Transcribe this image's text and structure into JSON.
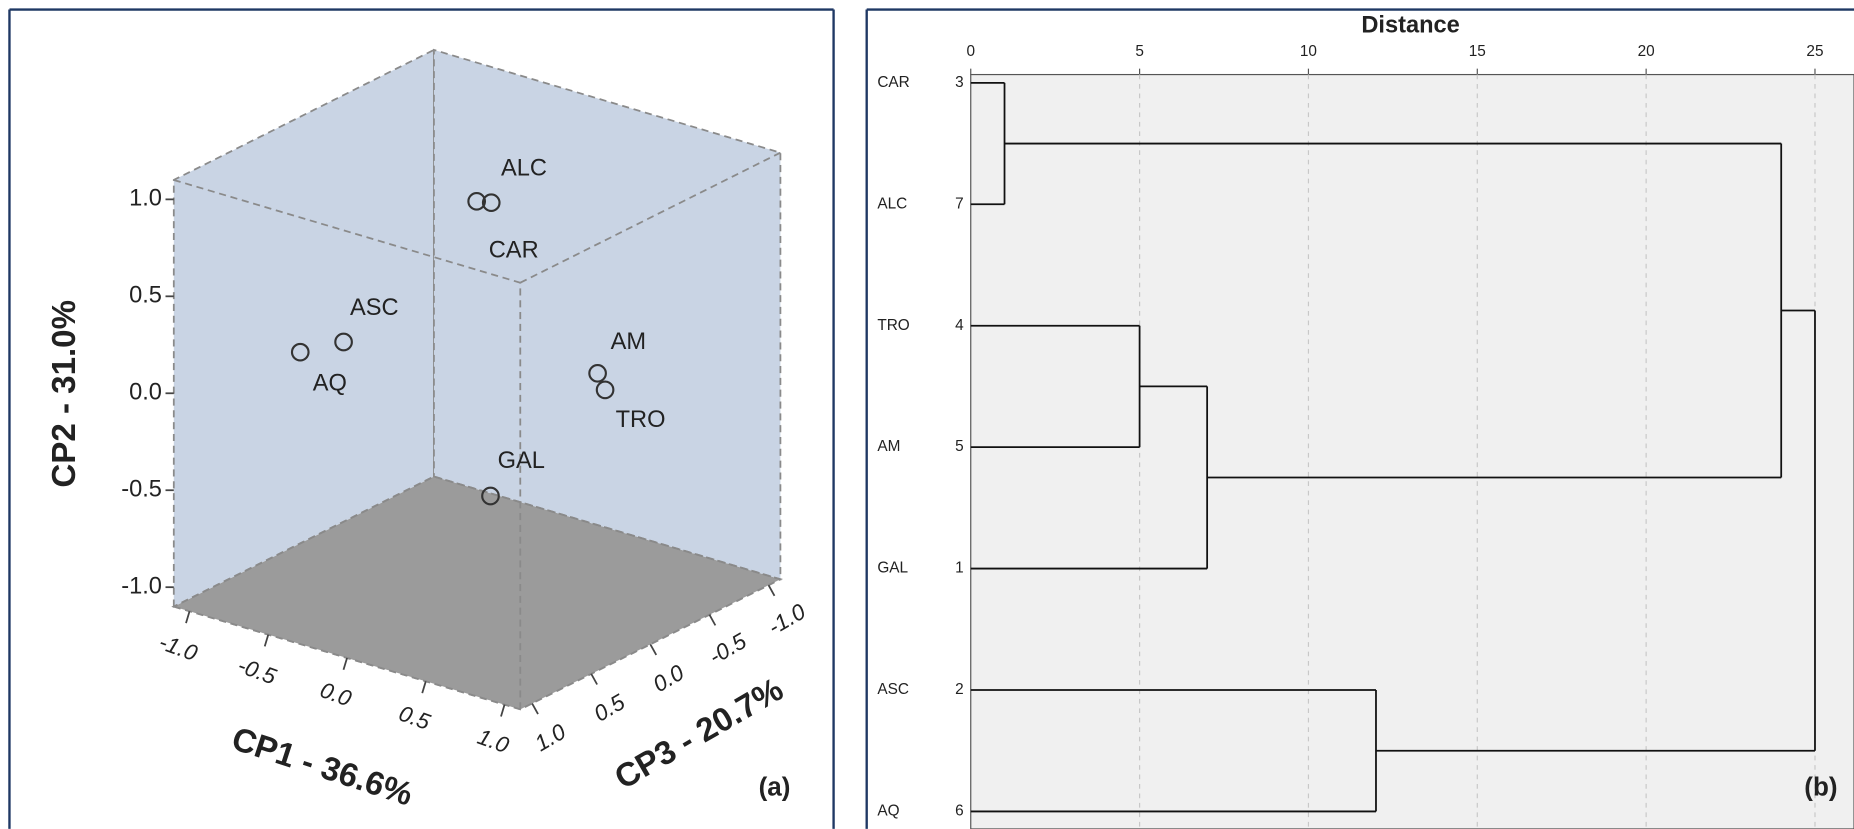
{
  "chart_data": [
    {
      "type": "scatter3d",
      "x_label": "CP1 - 36.6%",
      "y_label": "CP2 - 31.0%",
      "z_label": "CP3 - 20.7%",
      "panel_label": "(a)",
      "labels": [
        "ALC",
        "CAR",
        "ASC",
        "AQ",
        "AM",
        "TRO",
        "GAL"
      ],
      "x": [
        0.2,
        0.3,
        -0.6,
        -0.8,
        0.6,
        0.7,
        0.1
      ],
      "y": [
        1.05,
        1.07,
        0.15,
        0.08,
        0.11,
        0.07,
        -0.57
      ],
      "z": [
        0.27,
        0.28,
        0.33,
        0.43,
        -0.22,
        -0.15,
        0.02
      ],
      "xlim": [
        -1.1,
        1.1
      ],
      "ylim": [
        -1.1,
        1.1
      ],
      "zlim": [
        -1.1,
        1.1
      ],
      "xticks": [
        {
          "value": -1,
          "label": "-1.0"
        },
        -0.5,
        {
          "value": 0,
          "label": "0.0"
        },
        0.5,
        {
          "value": 1,
          "label": "1.0"
        }
      ],
      "yticks": [
        {
          "value": -1,
          "label": "-1.0"
        },
        -0.5,
        {
          "value": 0,
          "label": "0.0"
        },
        0.5,
        {
          "value": 1,
          "label": "1.0"
        }
      ],
      "zticks": [
        {
          "value": -1,
          "label": "-1.0"
        },
        -0.5,
        {
          "value": 0,
          "label": "0.0"
        },
        0.5,
        {
          "value": 1,
          "label": "1.0"
        }
      ],
      "wall_color": "#c9d4e4",
      "floor_color": "#9b9b9b"
    },
    {
      "type": "dendrogram",
      "title": "Distance",
      "panel_label": "(b)",
      "leaves": [
        "CAR",
        "ALC",
        "TRO",
        "AM",
        "GAL",
        "ASC",
        "AQ"
      ],
      "case_numbers": [
        3,
        7,
        4,
        5,
        1,
        2,
        6
      ],
      "merges": [
        {
          "nodes": [
            0,
            1
          ],
          "distance": 1
        },
        {
          "nodes": [
            2,
            3
          ],
          "distance": 5
        },
        {
          "nodes": [
            8,
            4
          ],
          "distance": 7
        },
        {
          "nodes": [
            7,
            9
          ],
          "distance": 24
        },
        {
          "nodes": [
            5,
            6
          ],
          "distance": 12
        },
        {
          "nodes": [
            10,
            11
          ],
          "distance": 25
        }
      ],
      "xlim": [
        0,
        25
      ],
      "xticks": [
        0,
        5,
        10,
        15,
        20,
        25
      ],
      "grid": true
    }
  ]
}
